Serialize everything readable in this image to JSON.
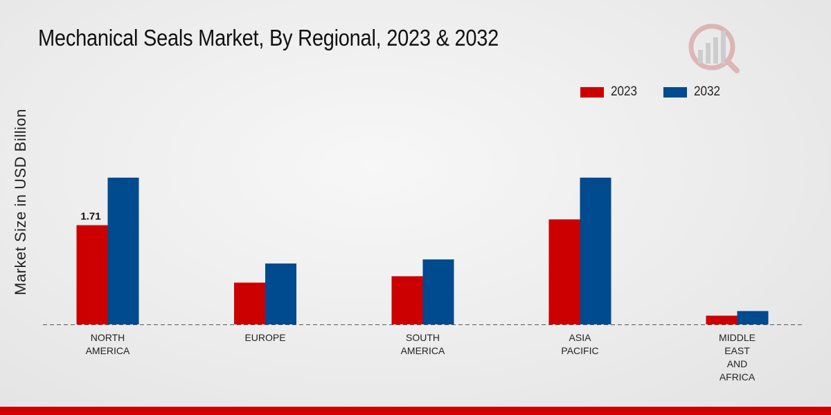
{
  "chart_data": {
    "type": "bar",
    "title": "Mechanical Seals Market, By Regional, 2023 & 2032",
    "xlabel": "",
    "ylabel": "Market Size in USD Billion",
    "categories": [
      [
        "NORTH",
        "AMERICA"
      ],
      [
        "EUROPE"
      ],
      [
        "SOUTH",
        "AMERICA"
      ],
      [
        "ASIA",
        "PACIFIC"
      ],
      [
        "MIDDLE",
        "EAST",
        "AND",
        "AFRICA"
      ]
    ],
    "series": [
      {
        "name": "2023",
        "color": "#cc0000",
        "values": [
          1.71,
          0.72,
          0.83,
          1.81,
          0.15
        ]
      },
      {
        "name": "2032",
        "color": "#004a8f",
        "values": [
          2.53,
          1.05,
          1.12,
          2.53,
          0.23
        ]
      }
    ],
    "data_labels": [
      {
        "series": 0,
        "index": 0,
        "text": "1.71"
      }
    ],
    "ylim": [
      0,
      4.4
    ],
    "grid": false,
    "legend_position": "top-right",
    "baseline": "dashed"
  }
}
